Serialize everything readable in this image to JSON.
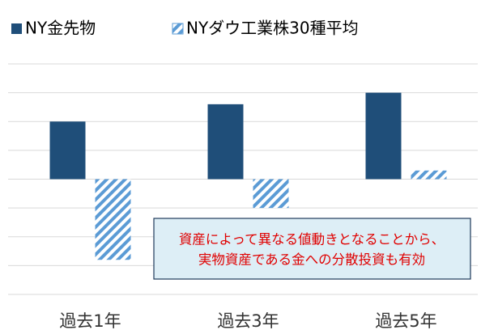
{
  "chart_data": {
    "type": "bar",
    "categories": [
      "過去1年",
      "過去3年",
      "過去5年"
    ],
    "series": [
      {
        "name": "NY金先物",
        "color": "#1f4e79",
        "values": [
          20,
          26,
          30
        ]
      },
      {
        "name": "NYダウ工業株30種平均",
        "color": "#5b9bd5",
        "pattern": "diagonal-hatch",
        "values": [
          -28,
          -10,
          3
        ]
      }
    ],
    "ylim": [
      -40,
      40
    ],
    "yticks": [
      -40,
      -30,
      -20,
      -10,
      0,
      10,
      20,
      30,
      40
    ],
    "grid": true,
    "legend": "top-left",
    "annotation": [
      "資産によって異なる値動きとなることから、",
      "実物資産である金への分散投資も有効"
    ]
  }
}
